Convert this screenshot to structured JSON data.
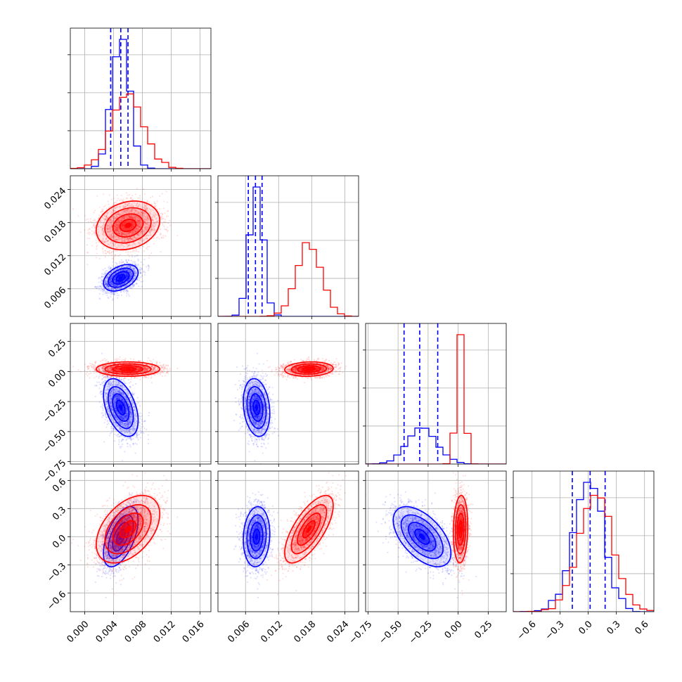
{
  "chart_data": {
    "type": "corner",
    "variables": 4,
    "colors": {
      "blue": "#0000ff",
      "red": "#ff0000",
      "grid": "#b0b0b0",
      "axis": "#000000"
    },
    "series": [
      {
        "color": "blue",
        "means": [
          0.005,
          0.008,
          -0.3,
          0.0
        ],
        "sds": [
          0.0012,
          0.0012,
          0.12,
          0.16
        ],
        "corr": [
          [
            1,
            0.4,
            -0.45,
            0.55
          ],
          [
            0.4,
            1,
            -0.2,
            0.1
          ],
          [
            -0.45,
            -0.2,
            1,
            -0.55
          ],
          [
            0.55,
            0.1,
            -0.55,
            1
          ]
        ],
        "quantiles": [
          [
            0.0036,
            0.005,
            0.006
          ],
          [
            0.0065,
            0.0078,
            0.009
          ],
          [
            -0.45,
            -0.32,
            -0.17
          ],
          [
            -0.17,
            0.02,
            0.18
          ]
        ]
      },
      {
        "color": "red",
        "means": [
          0.006,
          0.0175,
          0.02,
          0.08
        ],
        "sds": [
          0.0022,
          0.0022,
          0.03,
          0.18
        ],
        "corr": [
          [
            1,
            0.2,
            0.0,
            0.45
          ],
          [
            0.2,
            1,
            0.1,
            0.7
          ],
          [
            0.0,
            0.1,
            1,
            0.1
          ],
          [
            0.45,
            0.7,
            0.1,
            1
          ]
        ],
        "quantiles": []
      }
    ],
    "axes": [
      {
        "range": [
          -0.002,
          0.0175
        ],
        "ticks": [
          "0.000",
          "0.004",
          "0.008",
          "0.012",
          "0.016"
        ],
        "tick_values": [
          0.0,
          0.004,
          0.008,
          0.012,
          0.016
        ]
      },
      {
        "range": [
          0.001,
          0.0265
        ],
        "ticks": [
          "0.006",
          "0.012",
          "0.018",
          "0.024"
        ],
        "tick_values": [
          0.006,
          0.012,
          0.018,
          0.024
        ]
      },
      {
        "range": [
          -0.77,
          0.4
        ],
        "ticks": [
          "−0.75",
          "−0.50",
          "−0.25",
          "0.00",
          "0.25"
        ],
        "tick_values": [
          -0.75,
          -0.5,
          -0.25,
          0.0,
          0.25
        ]
      },
      {
        "range": [
          -0.8,
          0.7
        ],
        "ticks": [
          "−0.6",
          "−0.3",
          "0.0",
          "0.3",
          "0.6"
        ],
        "tick_values": [
          -0.6,
          -0.3,
          0.0,
          0.3,
          0.6
        ]
      }
    ],
    "grid": true,
    "title": "",
    "xlabel": "",
    "ylabel": ""
  }
}
